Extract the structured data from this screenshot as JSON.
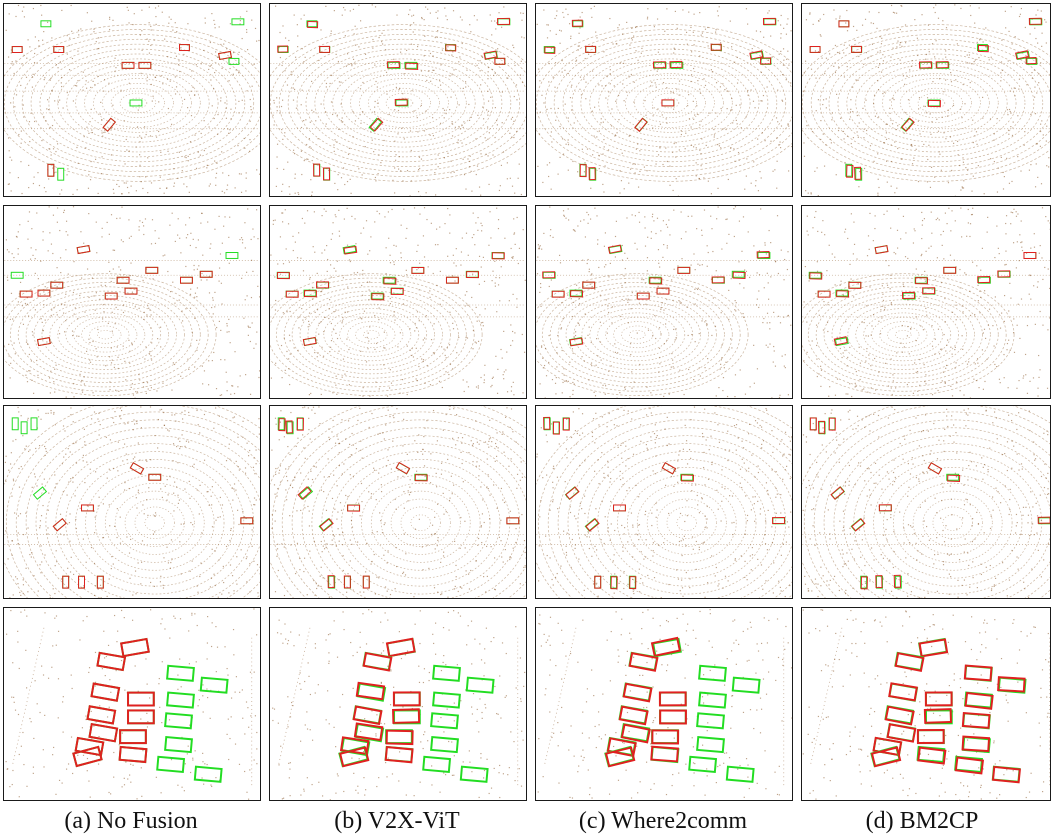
{
  "figure": {
    "captions": [
      "(a) No Fusion",
      "(b) V2X-ViT",
      "(c) Where2comm",
      "(d) BM2CP"
    ],
    "colors": {
      "points": "#8b5a2b",
      "ground_truth_box": "#22dd22",
      "prediction_box": "#e02020",
      "border": "#1a1a1a"
    },
    "rows": 4,
    "columns": 4
  }
}
